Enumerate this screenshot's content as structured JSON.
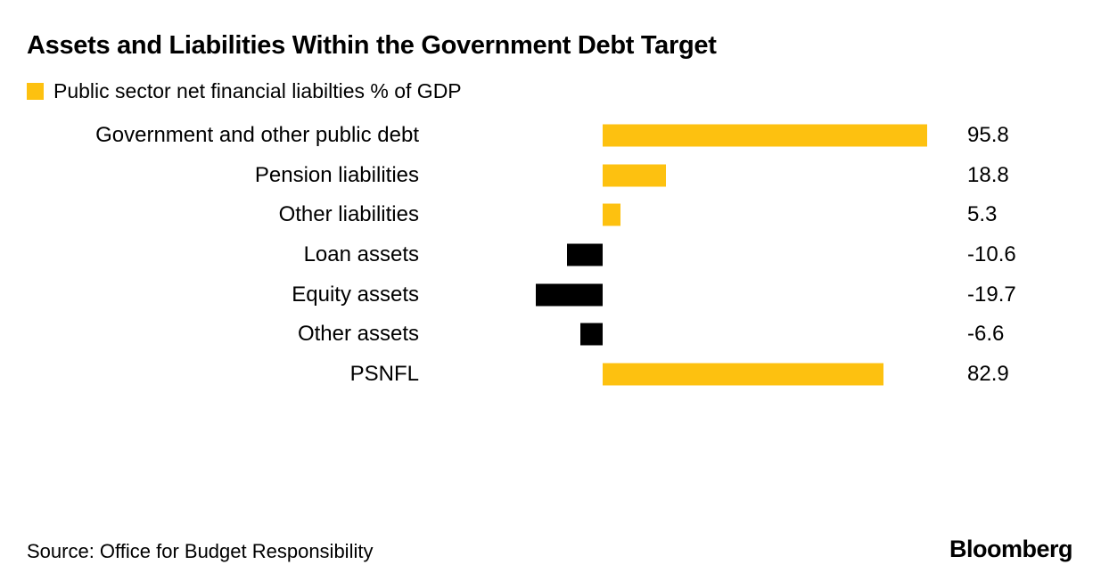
{
  "header": {
    "title": "Assets and Liabilities Within the Government Debt Target"
  },
  "legend": {
    "label": "Public sector net financial liabilties % of GDP",
    "swatch_color": "#FDC110"
  },
  "footer": {
    "source": "Source: Office for Budget Responsibility",
    "brand": "Bloomberg"
  },
  "chart_data": {
    "type": "bar",
    "orientation": "horizontal",
    "title": "Assets and Liabilities Within the Government Debt Target",
    "legend_label": "Public sector net financial liabilties % of GDP",
    "categories": [
      "Government and other public debt",
      "Pension liabilities",
      "Other liabilities",
      "Loan assets",
      "Equity assets",
      "Other assets",
      "PSNFL"
    ],
    "values": [
      95.8,
      18.8,
      5.3,
      -10.6,
      -19.7,
      -6.6,
      82.9
    ],
    "value_labels": [
      "95.8",
      "18.8",
      "5.3",
      "-10.6",
      "-19.7",
      "-6.6",
      "82.9"
    ],
    "unit": "% of GDP",
    "positive_color": "#FDC110",
    "negative_color": "#000000",
    "value_label_position": "right",
    "grid": false,
    "xlim": [
      -25,
      100
    ],
    "source": "Office for Budget Responsibility"
  }
}
